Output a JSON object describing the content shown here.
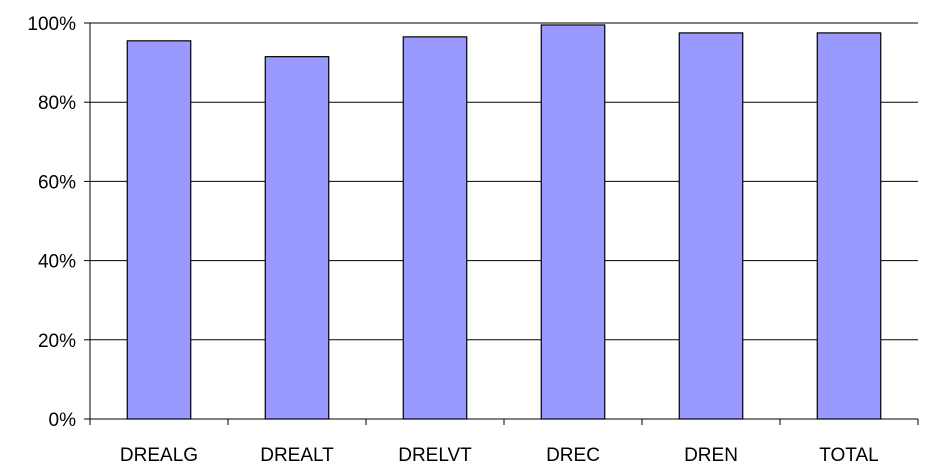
{
  "chart_data": {
    "type": "bar",
    "title": "",
    "xlabel": "",
    "ylabel": "",
    "categories": [
      "DREALG",
      "DREALT",
      "DRELVT",
      "DREC",
      "DREN",
      "TOTAL"
    ],
    "values": [
      95.5,
      91.5,
      96.5,
      99.5,
      97.5,
      97.5
    ],
    "ylim": [
      0,
      100
    ],
    "yticks": [
      0,
      20,
      40,
      60,
      80,
      100
    ],
    "ytick_labels": [
      "0%",
      "20%",
      "40%",
      "60%",
      "80%",
      "100%"
    ],
    "grid": true,
    "legend": "none",
    "colors": {
      "bar_fill": "#9999ff",
      "bar_stroke": "#000000",
      "grid": "#000000",
      "axis": "#000000"
    }
  }
}
